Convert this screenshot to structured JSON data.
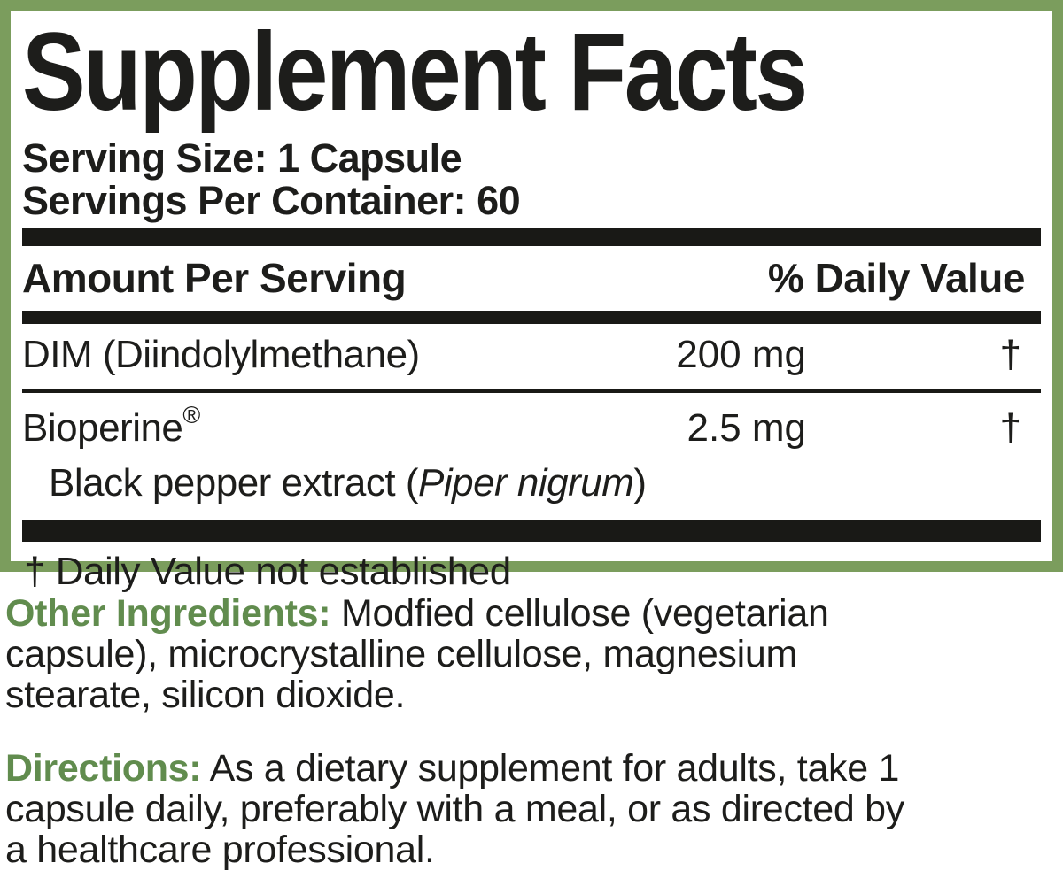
{
  "label": {
    "title": "Supplement Facts",
    "serving_size": "Serving Size: 1 Capsule",
    "servings_per_container": "Servings Per Container: 60",
    "header": {
      "amount_col": "Amount Per Serving",
      "dv_col": "% Daily Value"
    },
    "rows": [
      {
        "name": "DIM (Diindolylmethane)",
        "amount": "200 mg",
        "dv": "†"
      },
      {
        "name": "Bioperine",
        "reg": "®",
        "amount": "2.5 mg",
        "dv": "†",
        "sub": {
          "prefix": "Black pepper extract (",
          "italic": "Piper nigrum",
          "suffix": ")"
        }
      }
    ],
    "footnote": "† Daily Value not established"
  },
  "sections": {
    "other_ingredients": {
      "label": "Other Ingredients:",
      "lines": [
        "Modfied cellulose (vegetarian",
        "capsule), microcrystalline cellulose, magnesium",
        "stearate, silicon dioxide."
      ]
    },
    "directions": {
      "label": "Directions:",
      "lines": [
        "As a dietary supplement for adults, take 1",
        "capsule daily, preferably with a meal, or as directed by",
        "a healthcare professional."
      ]
    }
  },
  "colors": {
    "border_green": "#7b9d5d",
    "heading_green": "#618c4e",
    "text_black": "#1d1d1b",
    "bar_black": "#191916"
  }
}
